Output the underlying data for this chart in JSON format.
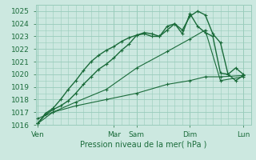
{
  "title": "",
  "xlabel": "Pression niveau de la mer( hPa )",
  "bg_color": "#cce8e0",
  "grid_color": "#99ccbb",
  "line_color": "#1a6b3a",
  "ylim": [
    1016,
    1025.5
  ],
  "yticks": [
    1016,
    1017,
    1018,
    1019,
    1020,
    1021,
    1022,
    1023,
    1024,
    1025
  ],
  "day_labels": [
    "Ven",
    "",
    "Mar",
    "Sam",
    "",
    "Dim",
    "",
    "Lun"
  ],
  "day_positions": [
    0,
    20,
    40,
    52,
    66,
    80,
    94,
    108
  ],
  "xlim": [
    -1,
    112
  ],
  "series": [
    {
      "x": [
        0,
        4,
        8,
        12,
        16,
        20,
        24,
        28,
        32,
        36,
        40,
        44,
        48,
        52,
        56,
        60,
        64,
        68,
        72,
        76,
        80,
        84,
        88,
        92,
        96,
        100,
        104,
        108
      ],
      "y": [
        1016.1,
        1016.8,
        1017.2,
        1017.5,
        1017.9,
        1018.5,
        1019.2,
        1019.8,
        1020.4,
        1020.8,
        1021.3,
        1021.9,
        1022.4,
        1023.1,
        1023.2,
        1023.0,
        1023.0,
        1023.5,
        1024.0,
        1023.5,
        1024.6,
        1025.0,
        1024.7,
        1023.2,
        1022.5,
        1020.0,
        1019.5,
        1019.9
      ],
      "lw": 1.0
    },
    {
      "x": [
        0,
        4,
        8,
        12,
        16,
        20,
        24,
        28,
        32,
        36,
        40,
        44,
        48,
        52,
        56,
        60,
        64,
        68,
        72,
        76,
        80,
        84,
        88,
        92,
        96,
        100,
        104,
        108
      ],
      "y": [
        1016.1,
        1016.9,
        1017.3,
        1018.0,
        1018.8,
        1019.5,
        1020.3,
        1021.0,
        1021.5,
        1021.9,
        1022.2,
        1022.6,
        1022.9,
        1023.1,
        1023.3,
        1023.2,
        1023.0,
        1023.8,
        1024.0,
        1023.2,
        1024.8,
        1023.8,
        1023.3,
        1023.0,
        1020.1,
        1020.0,
        1020.5,
        1020.0
      ],
      "lw": 1.0
    },
    {
      "x": [
        0,
        8,
        20,
        36,
        52,
        68,
        80,
        88,
        96,
        108
      ],
      "y": [
        1016.5,
        1017.0,
        1017.8,
        1018.8,
        1020.5,
        1021.8,
        1022.8,
        1023.5,
        1019.5,
        1019.8
      ],
      "lw": 0.8
    },
    {
      "x": [
        0,
        8,
        20,
        36,
        52,
        68,
        80,
        88,
        96,
        108
      ],
      "y": [
        1016.1,
        1017.0,
        1017.5,
        1018.0,
        1018.5,
        1019.2,
        1019.5,
        1019.8,
        1019.8,
        1019.9
      ],
      "lw": 0.8
    }
  ]
}
